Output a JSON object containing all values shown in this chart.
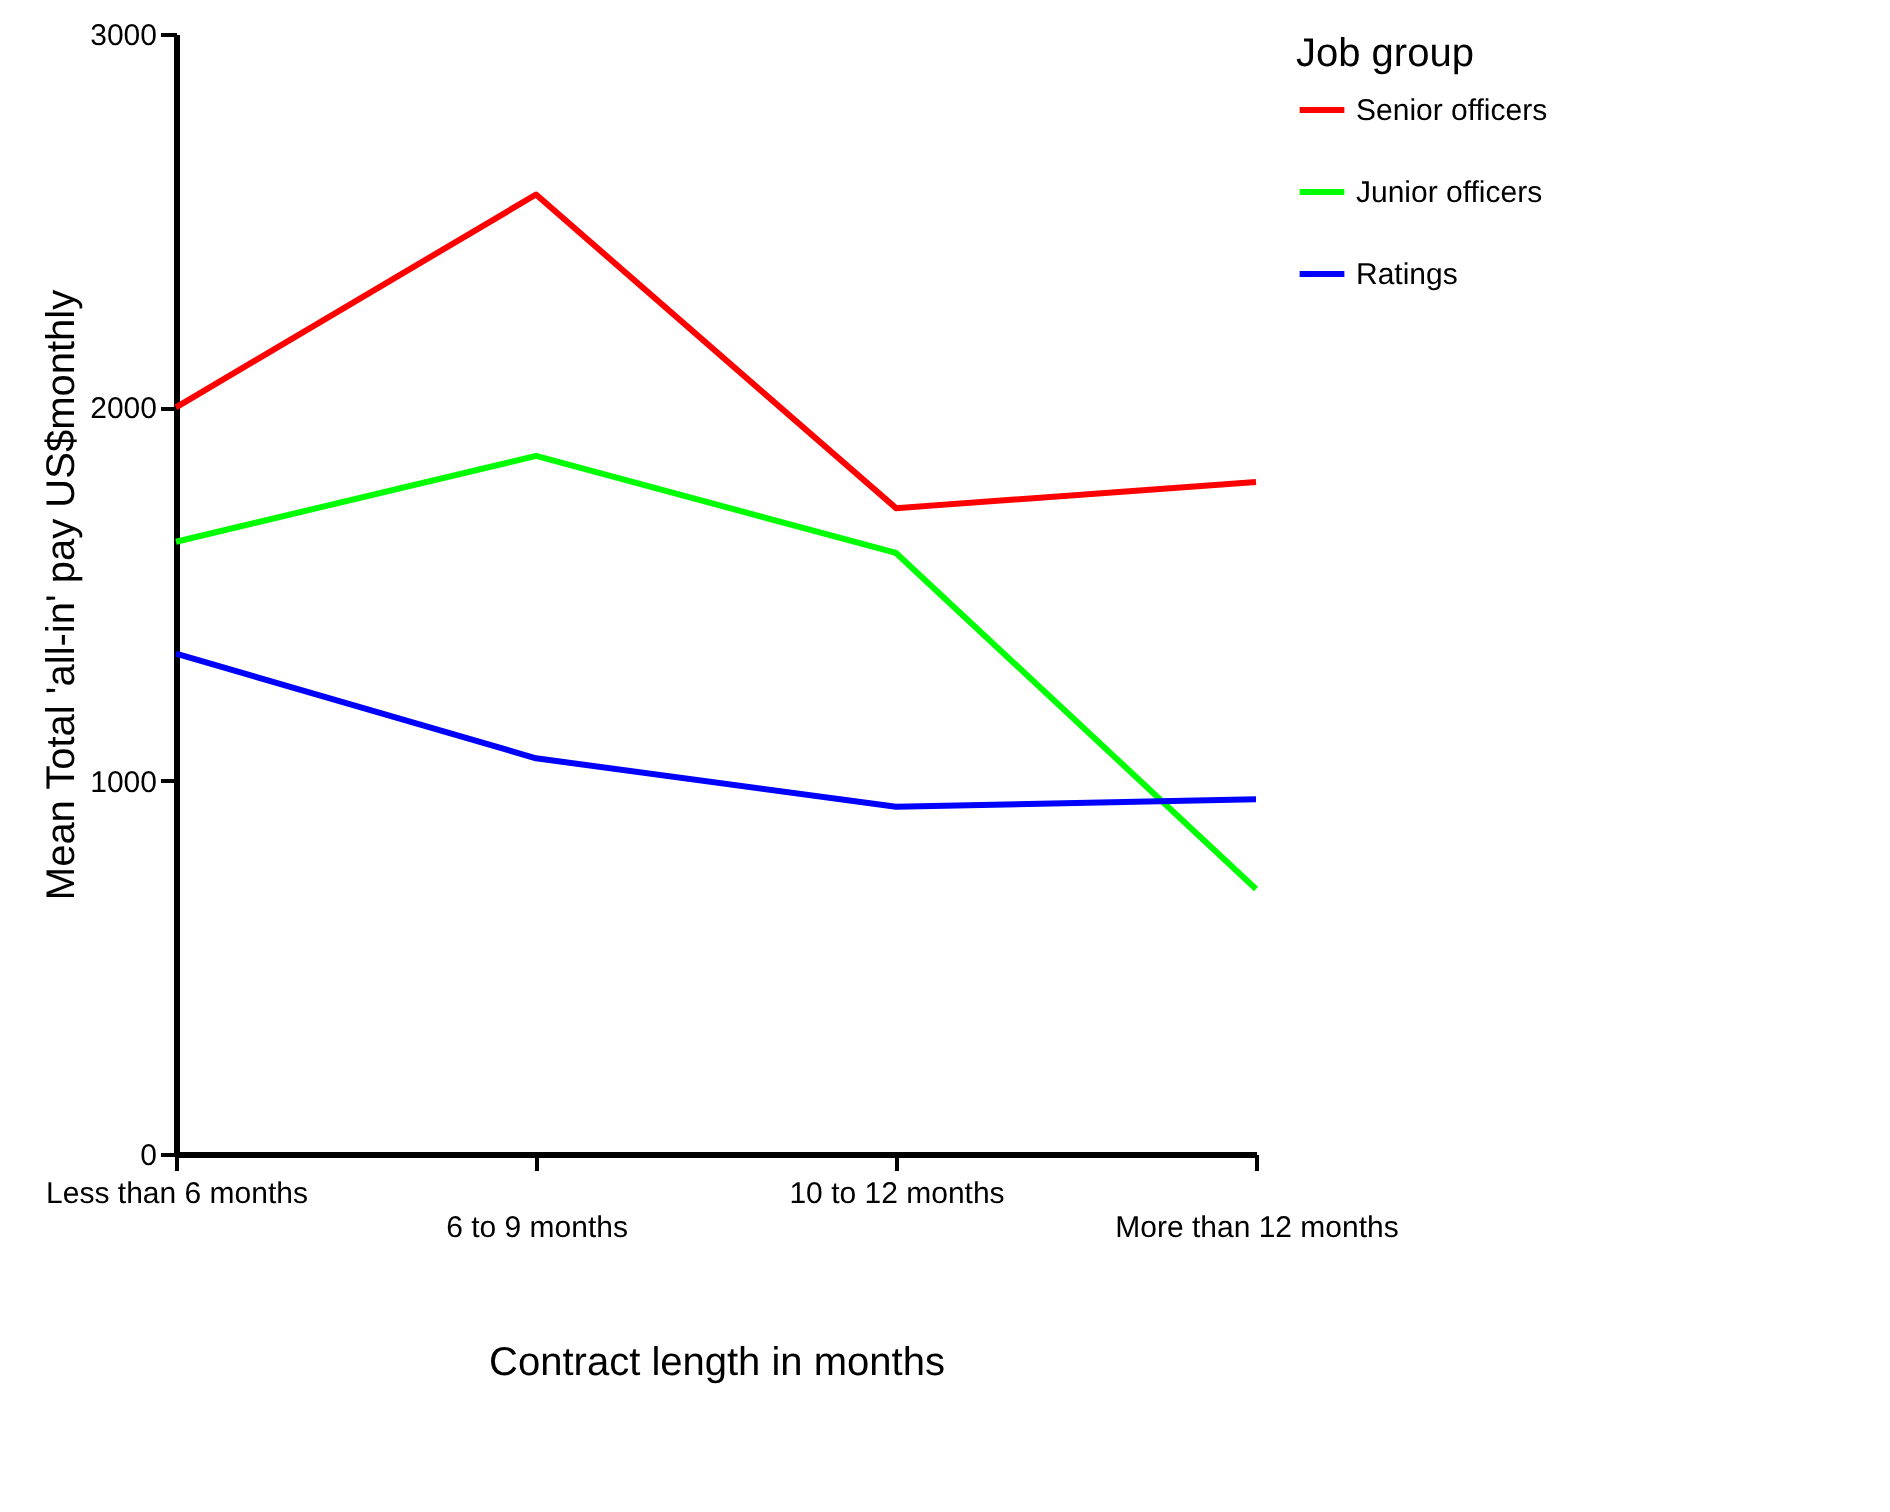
{
  "chart_data": {
    "type": "line",
    "xlabel": "Contract length in months",
    "ylabel": "Mean Total 'all-in' pay US$monthly",
    "legend_title": "Job  group",
    "categories": [
      "Less than 6 months",
      "6 to 9 months",
      "10 to 12 months",
      "More than 12 months"
    ],
    "series": [
      {
        "name": "Senior officers",
        "color": "#ff0000",
        "values": [
          2000,
          2570,
          1730,
          1800
        ]
      },
      {
        "name": "Junior officers",
        "color": "#00ff00",
        "values": [
          1640,
          1870,
          1610,
          710
        ]
      },
      {
        "name": "Ratings",
        "color": "#0000ff",
        "values": [
          1340,
          1060,
          930,
          950
        ]
      }
    ],
    "ylim": [
      0,
      3000
    ],
    "yticks": [
      0,
      1000,
      2000,
      3000
    ],
    "grid": false,
    "legend": "right",
    "marker": "none",
    "line_style": "solid"
  }
}
